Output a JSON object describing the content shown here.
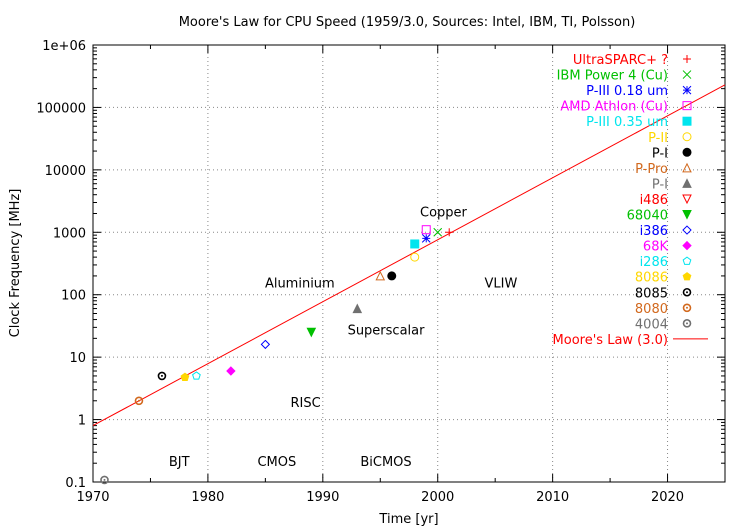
{
  "chart_data": {
    "type": "scatter",
    "title": "Moore's Law for CPU Speed (1959/3.0, Sources: Intel, IBM, TI, Polsson)",
    "xlabel": "Time [yr]",
    "ylabel": "Clock Frequency [MHz]",
    "xlim": [
      1970,
      2025
    ],
    "ylim": [
      0.1,
      1000000
    ],
    "yscale": "log",
    "grid": true,
    "legend_position": "top-right",
    "x_ticks": [
      "1970",
      "1980",
      "1990",
      "2000",
      "2010",
      "2020"
    ],
    "y_ticks": [
      "0.1",
      "1",
      "10",
      "100",
      "1000",
      "10000",
      "100000",
      "1e+06"
    ],
    "series": [
      {
        "name": "UltraSPARC+ ?",
        "color": "#ff0000",
        "marker": "plus",
        "points": [
          [
            2001,
            1000
          ]
        ]
      },
      {
        "name": "IBM Power 4 (Cu)",
        "color": "#00c000",
        "marker": "cross",
        "points": [
          [
            2000,
            1000
          ]
        ]
      },
      {
        "name": "P-III 0.18 um",
        "color": "#0000ff",
        "marker": "star",
        "points": [
          [
            1999,
            800
          ]
        ]
      },
      {
        "name": "AMD Athlon (Cu)",
        "color": "#ff00ff",
        "marker": "square-open",
        "points": [
          [
            1999,
            1100
          ]
        ]
      },
      {
        "name": "P-III 0.35 um",
        "color": "#00e5ee",
        "marker": "square-filled",
        "points": [
          [
            1998,
            650
          ]
        ]
      },
      {
        "name": "P-II",
        "color": "#ffd700",
        "marker": "circle-open",
        "points": [
          [
            1998,
            400
          ]
        ]
      },
      {
        "name": "P-I",
        "color": "#000000",
        "marker": "circle-filled",
        "points": [
          [
            1996,
            200
          ]
        ]
      },
      {
        "name": "P-Pro",
        "color": "#d2691e",
        "marker": "triangle-open",
        "points": [
          [
            1995,
            200
          ]
        ]
      },
      {
        "name": "P-I",
        "color": "#707070",
        "marker": "triangle-filled",
        "points": [
          [
            1993,
            60
          ]
        ]
      },
      {
        "name": "i486",
        "color": "#ff0000",
        "marker": "triangle-down-open",
        "points": []
      },
      {
        "name": "68040",
        "color": "#00c000",
        "marker": "triangle-down-filled",
        "points": [
          [
            1989,
            25
          ]
        ]
      },
      {
        "name": "i386",
        "color": "#0000ff",
        "marker": "diamond-open",
        "points": [
          [
            1985,
            16
          ]
        ]
      },
      {
        "name": "68K",
        "color": "#ff00ff",
        "marker": "diamond-filled",
        "points": [
          [
            1982,
            6
          ]
        ]
      },
      {
        "name": "i286",
        "color": "#00e5ee",
        "marker": "pentagon-open",
        "points": [
          [
            1979,
            5
          ]
        ]
      },
      {
        "name": "8086",
        "color": "#ffd700",
        "marker": "pentagon-filled",
        "points": [
          [
            1978,
            4.77
          ]
        ]
      },
      {
        "name": "8085",
        "color": "#000000",
        "marker": "circle-dot",
        "points": [
          [
            1976,
            5
          ]
        ]
      },
      {
        "name": "8080",
        "color": "#d2691e",
        "marker": "circle-dot",
        "points": [
          [
            1974,
            2
          ]
        ]
      },
      {
        "name": "4004",
        "color": "#707070",
        "marker": "circle-dot",
        "points": [
          [
            1971,
            0.108
          ]
        ]
      }
    ],
    "trend": {
      "name": "Moore's Law (3.0)",
      "color": "#ff0000",
      "points": [
        [
          1970,
          0.8
        ],
        [
          2025,
          230000
        ]
      ]
    },
    "annotations": [
      {
        "text": "Copper",
        "x": 2000.5,
        "y": 1800
      },
      {
        "text": "Aluminium",
        "x": 1988,
        "y": 130
      },
      {
        "text": "VLIW",
        "x": 2005.5,
        "y": 130
      },
      {
        "text": "Superscalar",
        "x": 1995.5,
        "y": 23
      },
      {
        "text": "RISC",
        "x": 1988.5,
        "y": 1.6
      },
      {
        "text": "BJT",
        "x": 1977.5,
        "y": 0.18
      },
      {
        "text": "CMOS",
        "x": 1986,
        "y": 0.18
      },
      {
        "text": "BiCMOS",
        "x": 1995.5,
        "y": 0.18
      }
    ]
  }
}
